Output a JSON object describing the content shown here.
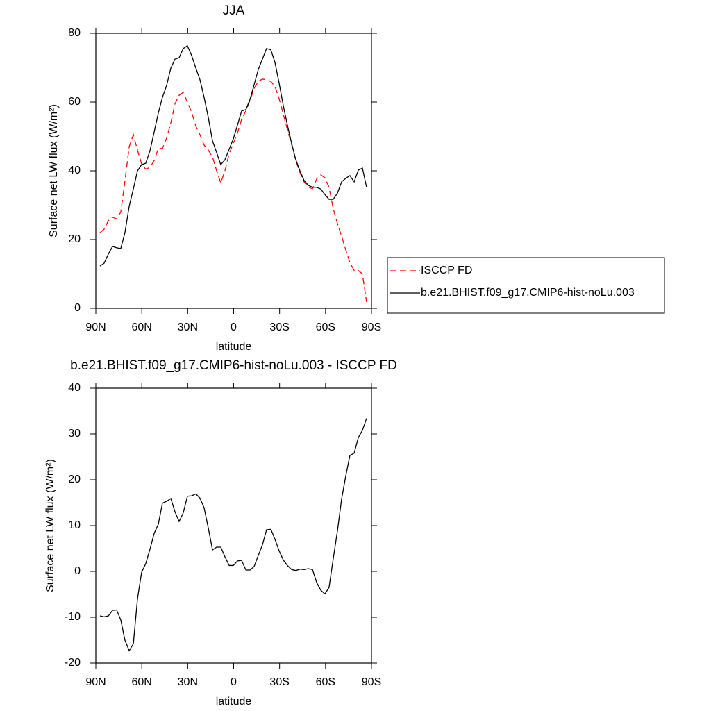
{
  "chart_data": [
    {
      "type": "line",
      "title": "JJA",
      "xlabel": "latitude",
      "ylabel": "Surface net LW flux (W/m²)",
      "x": [
        87.3,
        84.6,
        81.8,
        79.1,
        76.4,
        73.7,
        71.0,
        68.2,
        65.5,
        62.8,
        60.1,
        57.4,
        54.6,
        51.9,
        49.2,
        46.5,
        43.8,
        41.0,
        38.3,
        35.6,
        32.9,
        30.2,
        27.4,
        24.7,
        22.0,
        19.3,
        16.5,
        13.8,
        11.1,
        8.4,
        5.7,
        2.9,
        0.2,
        -2.5,
        -5.2,
        -8.0,
        -10.7,
        -13.4,
        -16.1,
        -18.8,
        -21.5,
        -24.3,
        -27.0,
        -29.7,
        -32.4,
        -35.1,
        -37.9,
        -40.6,
        -43.3,
        -46.0,
        -48.7,
        -51.5,
        -54.2,
        -56.9,
        -59.6,
        -62.3,
        -65.0,
        -67.8,
        -70.5,
        -73.2,
        -75.9,
        -78.7,
        -81.4,
        -84.1,
        -86.8
      ],
      "series": [
        {
          "name": "ISCCP FD",
          "color": "#ff0000",
          "linestyle": "dashed",
          "values": [
            22,
            23,
            25.5,
            26.5,
            26,
            28,
            37,
            47,
            50.5,
            46,
            42,
            40.5,
            41,
            43,
            46.5,
            46.5,
            49.5,
            54,
            59.5,
            62,
            62.8,
            60,
            57,
            53,
            50.5,
            47.5,
            46,
            44,
            40,
            36.5,
            40,
            45,
            48,
            51,
            55,
            57.5,
            60.5,
            64,
            66,
            66.7,
            66.5,
            66,
            64.5,
            61,
            56.5,
            52,
            47.5,
            43,
            39.5,
            36.8,
            35.2,
            34.8,
            37.6,
            38.8,
            38,
            35.2,
            29,
            24.6,
            21,
            17,
            13.3,
            11,
            11,
            10,
            1.8
          ]
        },
        {
          "name": "b.e21.BHIST.f09_g17.CMIP6-hist-noLu.003",
          "color": "#000000",
          "linestyle": "solid",
          "values": [
            12.3,
            13.1,
            15.8,
            18.0,
            17.6,
            17.4,
            22.0,
            29.7,
            34.7,
            40.0,
            41.8,
            42.2,
            45.9,
            51.3,
            56.8,
            61.4,
            64.8,
            69.9,
            72.5,
            72.9,
            75.6,
            76.4,
            73.5,
            69.9,
            66.5,
            61.4,
            55.4,
            48.7,
            45.3,
            41.8,
            43.2,
            46.3,
            49.3,
            53.3,
            57.4,
            57.8,
            60.8,
            65.1,
            69.5,
            72.5,
            75.6,
            75.2,
            71.5,
            65.5,
            59.0,
            53.3,
            47.9,
            43.2,
            40.0,
            37.2,
            35.8,
            35.2,
            35.2,
            34.7,
            33.1,
            31.7,
            31.7,
            33.5,
            36.8,
            37.8,
            38.6,
            36.8,
            40.2,
            40.8,
            35.2
          ]
        }
      ],
      "xlim": [
        90,
        -90
      ],
      "xticks": [
        {
          "value": 90,
          "label": "90N"
        },
        {
          "value": 60,
          "label": "60N"
        },
        {
          "value": 30,
          "label": "30N"
        },
        0,
        {
          "value": -30,
          "label": "30S"
        },
        {
          "value": -60,
          "label": "60S"
        },
        {
          "value": -90,
          "label": "90S"
        }
      ],
      "ylim": [
        0,
        80
      ],
      "yticks": [
        0,
        20,
        40,
        60,
        80
      ],
      "legend": "right"
    },
    {
      "type": "line",
      "title": "b.e21.BHIST.f09_g17.CMIP6-hist-noLu.003 - ISCCP FD",
      "xlabel": "latitude",
      "ylabel": "Surface net LW flux (W/m²)",
      "x": [
        87.3,
        84.6,
        81.8,
        79.1,
        76.4,
        73.7,
        71.0,
        68.2,
        65.5,
        62.8,
        60.1,
        57.4,
        54.6,
        51.9,
        49.2,
        46.5,
        43.8,
        41.0,
        38.3,
        35.6,
        32.9,
        30.2,
        27.4,
        24.7,
        22.0,
        19.3,
        16.5,
        13.8,
        11.1,
        8.4,
        5.7,
        2.9,
        0.2,
        -2.5,
        -5.2,
        -8.0,
        -10.7,
        -13.4,
        -16.1,
        -18.8,
        -21.5,
        -24.3,
        -27.0,
        -29.7,
        -32.4,
        -35.1,
        -37.9,
        -40.6,
        -43.3,
        -46.0,
        -48.7,
        -51.5,
        -54.2,
        -56.9,
        -59.6,
        -62.3,
        -65.0,
        -67.8,
        -70.5,
        -73.2,
        -75.9,
        -78.7,
        -81.4,
        -84.1,
        -86.8
      ],
      "series": [
        {
          "color": "#000000",
          "linestyle": "solid",
          "values": [
            -9.7,
            -9.9,
            -9.7,
            -8.5,
            -8.4,
            -10.6,
            -15.0,
            -17.3,
            -15.8,
            -6.0,
            -0.2,
            1.7,
            4.9,
            8.3,
            10.3,
            14.9,
            15.3,
            15.9,
            13.0,
            10.9,
            12.8,
            16.4,
            16.5,
            16.9,
            16.0,
            13.9,
            9.4,
            4.7,
            5.3,
            5.3,
            3.2,
            1.3,
            1.3,
            2.3,
            2.4,
            0.3,
            0.3,
            1.1,
            3.5,
            5.8,
            9.1,
            9.2,
            7.0,
            4.5,
            2.5,
            1.3,
            0.4,
            0.2,
            0.5,
            0.4,
            0.6,
            0.4,
            -2.4,
            -4.1,
            -4.9,
            -3.5,
            2.7,
            8.9,
            15.8,
            20.8,
            25.3,
            25.8,
            29.2,
            30.8,
            33.4
          ]
        }
      ],
      "xlim": [
        90,
        -90
      ],
      "xticks": [
        {
          "value": 90,
          "label": "90N"
        },
        {
          "value": 60,
          "label": "60N"
        },
        {
          "value": 30,
          "label": "30N"
        },
        0,
        {
          "value": -30,
          "label": "30S"
        },
        {
          "value": -60,
          "label": "60S"
        },
        {
          "value": -90,
          "label": "90S"
        }
      ],
      "ylim": [
        -20,
        40
      ],
      "yticks": [
        -20,
        -10,
        0,
        10,
        20,
        30,
        40
      ]
    }
  ]
}
